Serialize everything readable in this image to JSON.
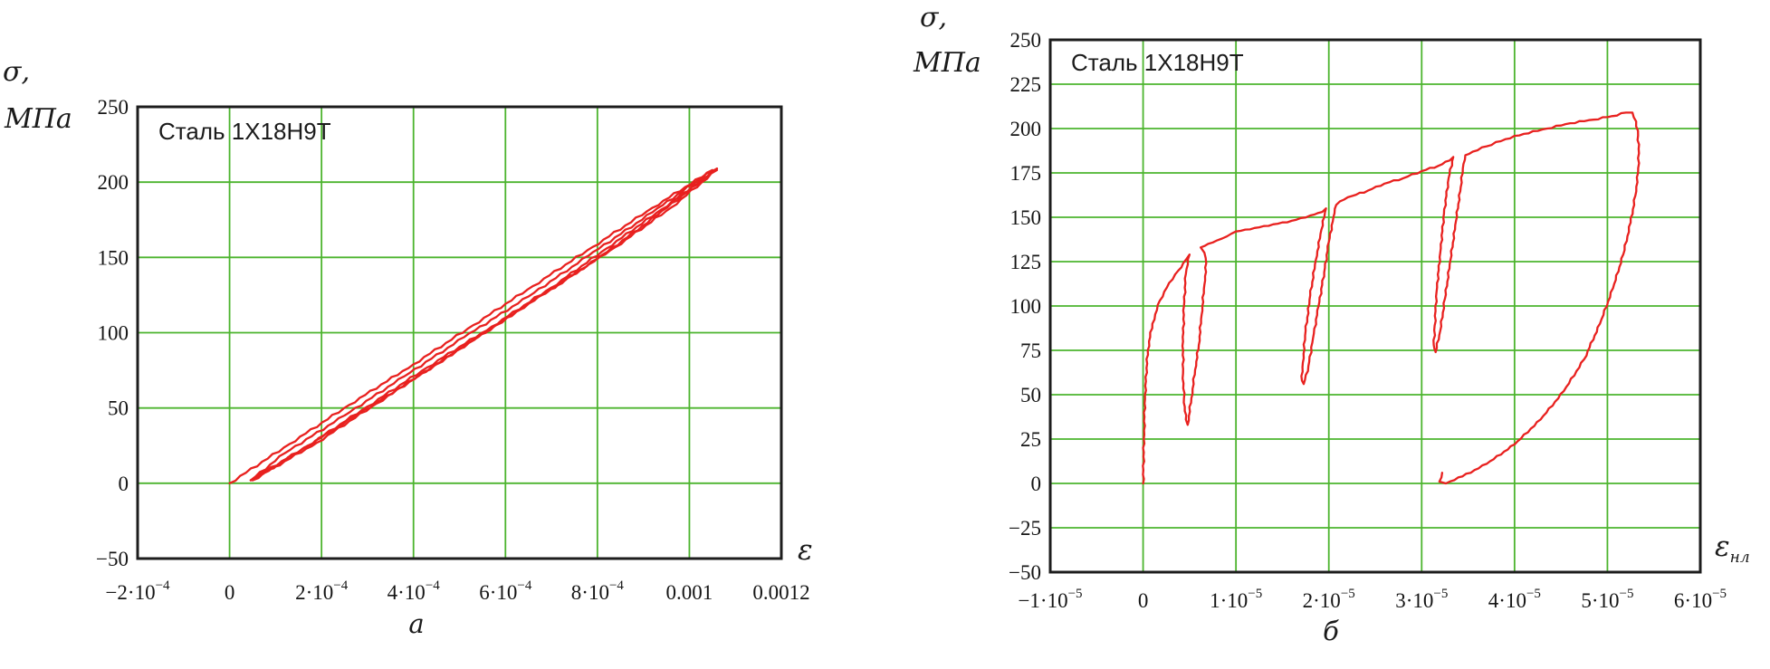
{
  "figure": {
    "background": "#ffffff",
    "description": "Two stress-strain cyclic diagrams for steel 1X18H9T"
  },
  "colors": {
    "grid": "#4cb42e",
    "frame": "#1d1d1d",
    "curve": "#e8211f",
    "text": "#1a1a1a"
  },
  "chart_data": [
    {
      "type": "line",
      "title": "Сталь 1Х18Н9Т",
      "y_label": [
        "σ,",
        "МПа"
      ],
      "x_label": "ε",
      "x_label_sub": "",
      "caption": "а",
      "grid": true,
      "legend": "none",
      "xlim": [
        -0.0002,
        0.0012
      ],
      "ylim": [
        -50,
        250
      ],
      "x_ticks": [
        {
          "v": -0.0002,
          "t": "−2·10^−4"
        },
        {
          "v": 0,
          "t": "0"
        },
        {
          "v": 0.0002,
          "t": "2·10^−4"
        },
        {
          "v": 0.0004,
          "t": "4·10^−4"
        },
        {
          "v": 0.0006,
          "t": "6·10^−4"
        },
        {
          "v": 0.0008,
          "t": "8·10^−4"
        },
        {
          "v": 0.001,
          "t": "0.001"
        },
        {
          "v": 0.0012,
          "t": "0.0012"
        }
      ],
      "y_ticks": [
        {
          "v": 250,
          "t": "250"
        },
        {
          "v": 200,
          "t": "200"
        },
        {
          "v": 150,
          "t": "150"
        },
        {
          "v": 100,
          "t": "100"
        },
        {
          "v": 50,
          "t": "50"
        },
        {
          "v": 0,
          "t": "0"
        },
        {
          "v": -50,
          "t": "−50"
        }
      ],
      "series": [
        {
          "name": "loading",
          "points": [
            [
              0,
              0
            ],
            [
              0.00013,
              26
            ],
            [
              0.00026,
              52
            ],
            [
              0.0004,
              79
            ],
            [
              0.00053,
              105
            ],
            [
              0.00066,
              131
            ],
            [
              0.00079,
              157
            ],
            [
              0.00092,
              183
            ],
            [
              0.00105,
              208
            ]
          ]
        },
        {
          "name": "unloading-1",
          "points": [
            [
              0.00105,
              208
            ],
            [
              0.00092,
              180
            ],
            [
              0.00078,
              151
            ],
            [
              0.00065,
              124
            ],
            [
              0.00051,
              97
            ],
            [
              0.00038,
              71
            ],
            [
              0.00025,
              45
            ],
            [
              0.00012,
              20
            ],
            [
              4.6e-05,
              2
            ]
          ]
        },
        {
          "name": "reloading-1",
          "points": [
            [
              4.6e-05,
              2
            ],
            [
              0.00017,
              25
            ],
            [
              0.0003,
              51
            ],
            [
              0.00043,
              77
            ],
            [
              0.00057,
              104
            ],
            [
              0.0007,
              130
            ],
            [
              0.00082,
              156
            ],
            [
              0.00094,
              182
            ],
            [
              0.00106,
              209
            ]
          ]
        },
        {
          "name": "unloading-2",
          "points": [
            [
              0.00106,
              209
            ],
            [
              0.00093,
              178
            ],
            [
              0.0008,
              149
            ],
            [
              0.00066,
              121
            ],
            [
              0.00053,
              95
            ],
            [
              0.0004,
              69
            ],
            [
              0.00027,
              44
            ],
            [
              0.00014,
              19
            ],
            [
              5e-05,
              2
            ]
          ]
        },
        {
          "name": "reloading-2",
          "points": [
            [
              5e-05,
              2
            ],
            [
              0.00019,
              27
            ],
            [
              0.00032,
              53
            ],
            [
              0.00045,
              79
            ],
            [
              0.00058,
              105
            ],
            [
              0.00071,
              131
            ],
            [
              0.00084,
              157
            ],
            [
              0.00096,
              183
            ],
            [
              0.00106,
              208
            ]
          ]
        }
      ]
    },
    {
      "type": "line",
      "title": "Сталь 1Х18Н9Т",
      "y_label": [
        "σ,",
        "МПа"
      ],
      "x_label": "ε",
      "x_label_sub": "нл",
      "caption": "б",
      "grid": true,
      "legend": "none",
      "xlim": [
        -1e-05,
        6e-05
      ],
      "ylim": [
        -50,
        250
      ],
      "x_ticks": [
        {
          "v": -1e-05,
          "t": "−1·10^−5"
        },
        {
          "v": 0,
          "t": "0"
        },
        {
          "v": 1e-05,
          "t": "1·10^−5"
        },
        {
          "v": 2e-05,
          "t": "2·10^−5"
        },
        {
          "v": 3e-05,
          "t": "3·10^−5"
        },
        {
          "v": 4e-05,
          "t": "4·10^−5"
        },
        {
          "v": 5e-05,
          "t": "5·10^−5"
        },
        {
          "v": 6e-05,
          "t": "6·10^−5"
        }
      ],
      "y_ticks": [
        {
          "v": 250,
          "t": "250"
        },
        {
          "v": 225,
          "t": "225"
        },
        {
          "v": 200,
          "t": "200"
        },
        {
          "v": 175,
          "t": "175"
        },
        {
          "v": 150,
          "t": "150"
        },
        {
          "v": 125,
          "t": "125"
        },
        {
          "v": 100,
          "t": "100"
        },
        {
          "v": 75,
          "t": "75"
        },
        {
          "v": 50,
          "t": "50"
        },
        {
          "v": 25,
          "t": "25"
        },
        {
          "v": 0,
          "t": "0"
        },
        {
          "v": -25,
          "t": "−25"
        },
        {
          "v": -50,
          "t": "−50"
        }
      ],
      "series": [
        {
          "name": "cyclic-diagram",
          "points": [
            [
              0,
              0
            ],
            [
              1e-07,
              30
            ],
            [
              2e-07,
              50
            ],
            [
              5e-07,
              75
            ],
            [
              1e-06,
              90
            ],
            [
              1.8e-06,
              103
            ],
            [
              2.8e-06,
              113
            ],
            [
              3.8e-06,
              120
            ],
            [
              4.6e-06,
              126
            ],
            [
              5e-06,
              129
            ],
            [
              4.6e-06,
              118
            ],
            [
              4.4e-06,
              100
            ],
            [
              4.3e-06,
              80
            ],
            [
              4.3e-06,
              62
            ],
            [
              4.4e-06,
              48
            ],
            [
              4.6e-06,
              36
            ],
            [
              4.8e-06,
              33
            ],
            [
              5.2e-06,
              48
            ],
            [
              5.6e-06,
              64
            ],
            [
              6e-06,
              78
            ],
            [
              6.3e-06,
              95
            ],
            [
              6.6e-06,
              112
            ],
            [
              6.8e-06,
              124
            ],
            [
              6.6e-06,
              130
            ],
            [
              6.2e-06,
              133
            ],
            [
              7e-06,
              135
            ],
            [
              8.5e-06,
              138
            ],
            [
              1e-05,
              142
            ],
            [
              1.2e-05,
              144
            ],
            [
              1.4e-05,
              146
            ],
            [
              1.6e-05,
              148
            ],
            [
              1.8e-05,
              151
            ],
            [
              1.93e-05,
              153
            ],
            [
              1.97e-05,
              155
            ],
            [
              1.92e-05,
              143
            ],
            [
              1.86e-05,
              126
            ],
            [
              1.8e-05,
              106
            ],
            [
              1.75e-05,
              86
            ],
            [
              1.72e-05,
              68
            ],
            [
              1.71e-05,
              58
            ],
            [
              1.73e-05,
              56
            ],
            [
              1.78e-05,
              66
            ],
            [
              1.83e-05,
              82
            ],
            [
              1.89e-05,
              100
            ],
            [
              1.95e-05,
              119
            ],
            [
              2e-05,
              136
            ],
            [
              2.05e-05,
              150
            ],
            [
              2.08e-05,
              157
            ],
            [
              2.12e-05,
              159
            ],
            [
              2.25e-05,
              162
            ],
            [
              2.42e-05,
              165
            ],
            [
              2.6e-05,
              169
            ],
            [
              2.8e-05,
              172
            ],
            [
              3e-05,
              176
            ],
            [
              3.18e-05,
              179
            ],
            [
              3.3e-05,
              182
            ],
            [
              3.34e-05,
              184
            ],
            [
              3.29e-05,
              172
            ],
            [
              3.24e-05,
              152
            ],
            [
              3.2e-05,
              130
            ],
            [
              3.16e-05,
              108
            ],
            [
              3.14e-05,
              89
            ],
            [
              3.13e-05,
              78
            ],
            [
              3.15e-05,
              74
            ],
            [
              3.2e-05,
              86
            ],
            [
              3.25e-05,
              104
            ],
            [
              3.31e-05,
              126
            ],
            [
              3.37e-05,
              148
            ],
            [
              3.42e-05,
              167
            ],
            [
              3.45e-05,
              180
            ],
            [
              3.47e-05,
              185
            ],
            [
              3.55e-05,
              187
            ],
            [
              3.7e-05,
              190
            ],
            [
              3.9e-05,
              194
            ],
            [
              4.1e-05,
              197
            ],
            [
              4.35e-05,
              200
            ],
            [
              4.6e-05,
              203
            ],
            [
              4.85e-05,
              205
            ],
            [
              5.05e-05,
              207
            ],
            [
              5.2e-05,
              209
            ],
            [
              5.27e-05,
              209
            ],
            [
              5.31e-05,
              204
            ],
            [
              5.33e-05,
              196
            ],
            [
              5.34e-05,
              186
            ],
            [
              5.33e-05,
              175
            ],
            [
              5.3e-05,
              162
            ],
            [
              5.25e-05,
              147
            ],
            [
              5.17e-05,
              129
            ],
            [
              5.06e-05,
              110
            ],
            [
              4.92e-05,
              90
            ],
            [
              4.75e-05,
              70
            ],
            [
              4.53e-05,
              52
            ],
            [
              4.28e-05,
              36
            ],
            [
              4e-05,
              22
            ],
            [
              3.7e-05,
              11
            ],
            [
              3.44e-05,
              4
            ],
            [
              3.26e-05,
              0
            ],
            [
              3.19e-05,
              1
            ],
            [
              3.22e-05,
              6
            ]
          ]
        }
      ]
    }
  ]
}
